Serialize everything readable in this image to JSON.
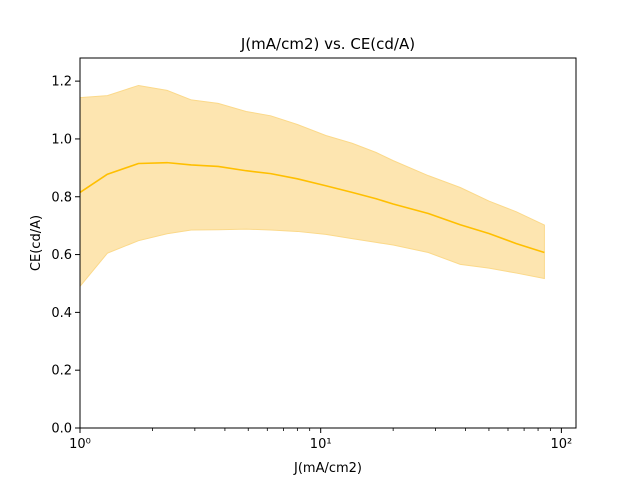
{
  "chart_data": {
    "type": "area",
    "title": "J(mA/cm2) vs. CE(cd/A)",
    "xlabel": "J(mA/cm2)",
    "ylabel": "CE(cd/A)",
    "xscale": "log",
    "xlim": [
      1,
      115
    ],
    "ylim": [
      0,
      1.28
    ],
    "grid": false,
    "color": "#ffbf00",
    "band_color": "#fde5b0",
    "band_edge_color": "#fbd98a",
    "x_ticks": [
      {
        "value": 1,
        "label": "10⁰"
      },
      {
        "value": 10,
        "label": "10¹"
      },
      {
        "value": 100,
        "label": "10²"
      }
    ],
    "y_ticks": [
      {
        "value": 0,
        "label": "0.0"
      },
      {
        "value": 0.2,
        "label": "0.2"
      },
      {
        "value": 0.4,
        "label": "0.4"
      },
      {
        "value": 0.6,
        "label": "0.6"
      },
      {
        "value": 0.8,
        "label": "0.8"
      },
      {
        "value": 1.0,
        "label": "1.0"
      },
      {
        "value": 1.2,
        "label": "1.2"
      }
    ],
    "x": [
      1.0,
      1.3,
      1.75,
      2.3,
      2.9,
      3.75,
      4.9,
      6.2,
      8.0,
      10.5,
      13.5,
      17.0,
      20.0,
      28.0,
      38.0,
      50.0,
      65.0,
      85.0
    ],
    "series": [
      {
        "values": [
          0.815,
          0.878,
          0.915,
          0.918,
          0.91,
          0.905,
          0.89,
          0.88,
          0.862,
          0.838,
          0.815,
          0.793,
          0.775,
          0.742,
          0.703,
          0.673,
          0.638,
          0.607
        ],
        "lower": [
          0.49,
          0.605,
          0.648,
          0.672,
          0.685,
          0.686,
          0.688,
          0.685,
          0.68,
          0.67,
          0.655,
          0.642,
          0.633,
          0.607,
          0.566,
          0.553,
          0.536,
          0.517
        ],
        "upper": [
          1.143,
          1.15,
          1.185,
          1.168,
          1.135,
          1.123,
          1.095,
          1.08,
          1.05,
          1.012,
          0.985,
          0.953,
          0.925,
          0.873,
          0.832,
          0.785,
          0.748,
          0.702
        ]
      }
    ]
  }
}
